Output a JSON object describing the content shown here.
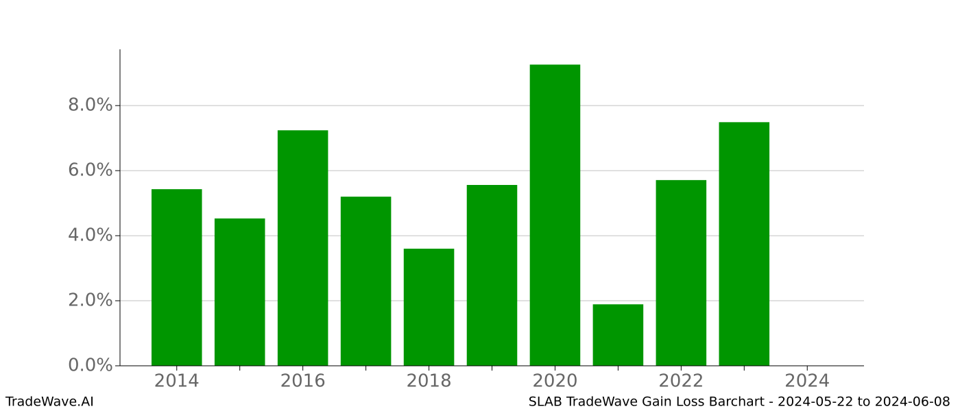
{
  "chart_data": {
    "type": "bar",
    "title": "SLAB TradeWave Gain Loss Barchart - 2024-05-22 to 2024-06-08",
    "brand": "TradeWave.AI",
    "x": [
      2014,
      2015,
      2016,
      2017,
      2018,
      2019,
      2020,
      2021,
      2022,
      2023
    ],
    "values": [
      5.43,
      4.53,
      7.24,
      5.2,
      3.6,
      5.56,
      9.26,
      1.89,
      5.71,
      7.49
    ],
    "color": "#009600",
    "bar_width": 0.8,
    "xlim": [
      2013.1,
      2024.9
    ],
    "xticks": [
      2014,
      2016,
      2018,
      2020,
      2022,
      2024
    ],
    "xminorticks": [
      2015,
      2017,
      2019,
      2021,
      2023
    ],
    "ylim": [
      0,
      9.73
    ],
    "yticks": [
      {
        "value": 0,
        "label": "0.0%"
      },
      {
        "value": 2,
        "label": "2.0%"
      },
      {
        "value": 4,
        "label": "4.0%"
      },
      {
        "value": 6,
        "label": "6.0%"
      },
      {
        "value": 8,
        "label": "8.0%"
      }
    ],
    "grid": true
  }
}
